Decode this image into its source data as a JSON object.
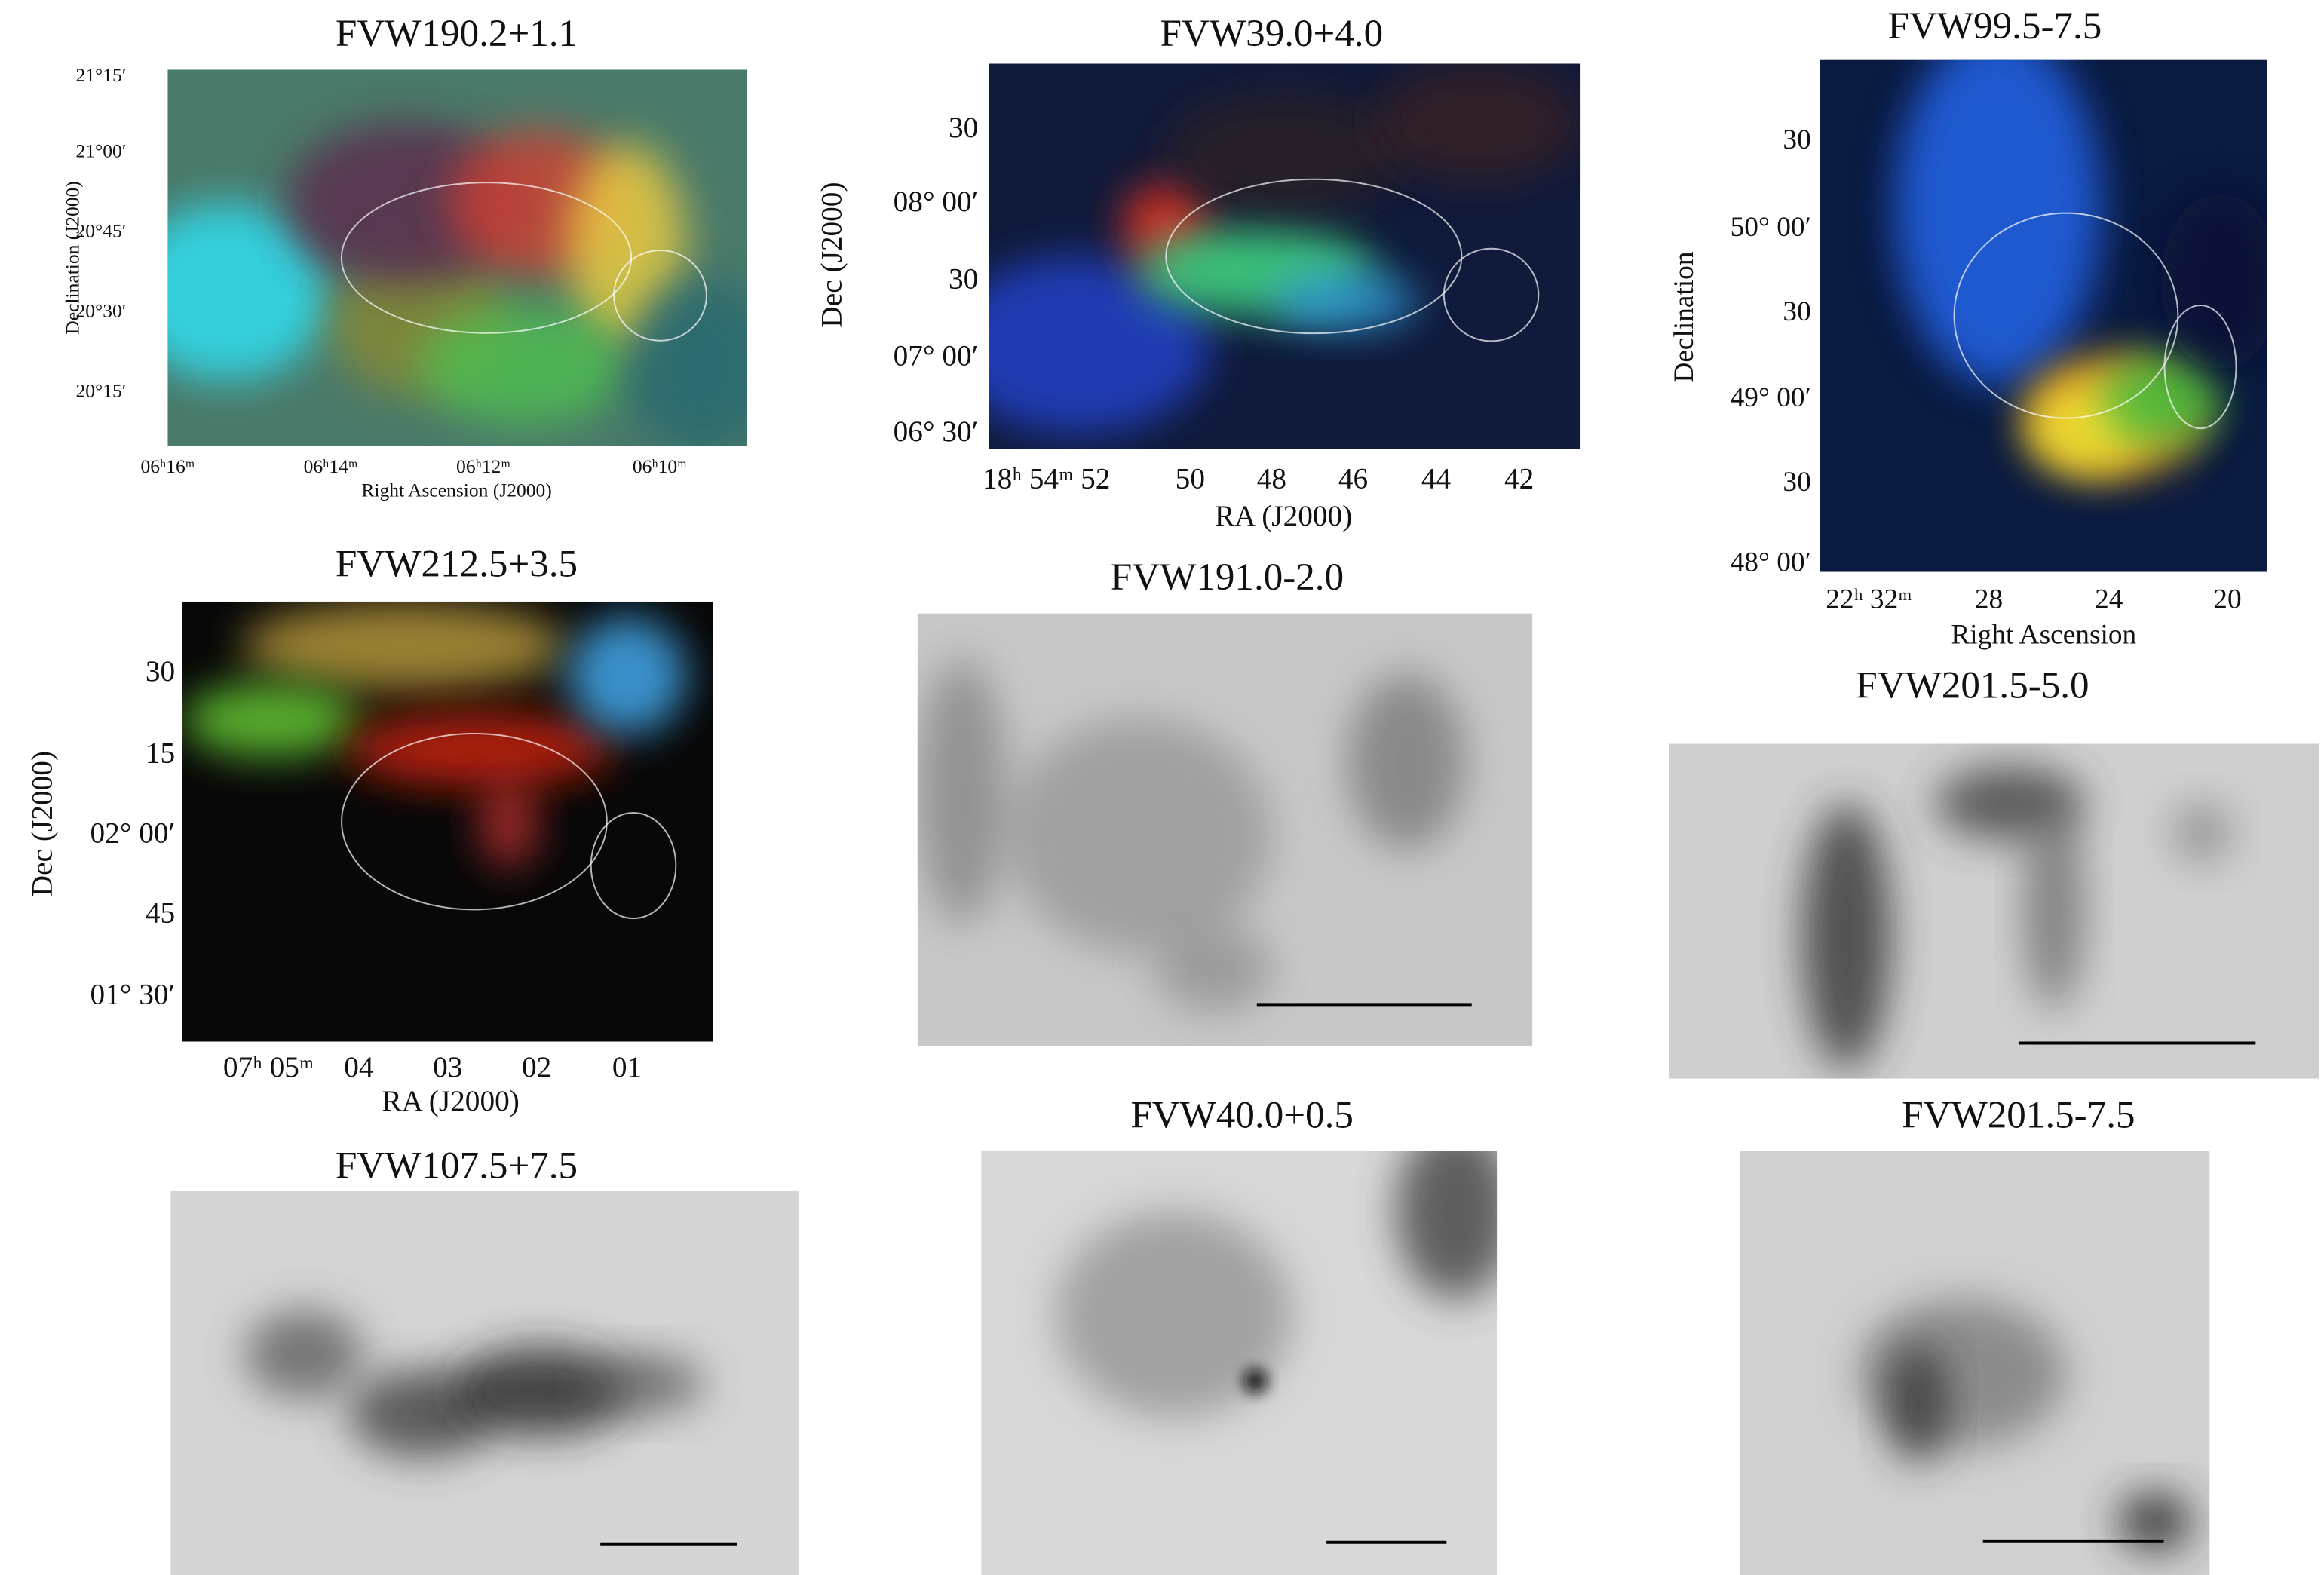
{
  "panels": [
    {
      "title": "FVW190.2+1.1",
      "x_label": "Right Ascension (J2000)",
      "y_label": "Declination (J2000)",
      "x_ticks": [
        "06ʰ16ᵐ",
        "06ʰ14ᵐ",
        "06ʰ12ᵐ",
        "06ʰ10ᵐ"
      ],
      "y_ticks": [
        "21°15′",
        "21°00′",
        "20°45′",
        "20°30′",
        "20°15′"
      ]
    },
    {
      "title": "FVW39.0+4.0",
      "x_label": "RA (J2000)",
      "y_label": "Dec (J2000)",
      "x_ticks": [
        "18ʰ 54ᵐ 52",
        "50",
        "48",
        "46",
        "44",
        "42"
      ],
      "y_ticks": [
        "30",
        "08° 00′",
        "30",
        "07° 00′",
        "06° 30′"
      ]
    },
    {
      "title": "FVW99.5-7.5",
      "x_label": "Right Ascension",
      "y_label": "Declination",
      "x_ticks": [
        "22ʰ 32ᵐ",
        "28",
        "24",
        "20"
      ],
      "y_ticks": [
        "30",
        "50° 00′",
        "30",
        "49° 00′",
        "30",
        "48° 00′"
      ]
    },
    {
      "title": "FVW212.5+3.5",
      "x_label": "RA (J2000)",
      "y_label": "Dec (J2000)",
      "x_ticks": [
        "07ʰ 05ᵐ",
        "04",
        "03",
        "02",
        "01"
      ],
      "y_ticks": [
        "30",
        "15",
        "02° 00′",
        "45",
        "01° 30′"
      ]
    },
    {
      "title": "FVW191.0-2.0"
    },
    {
      "title": "FVW201.5-5.0"
    },
    {
      "title": "FVW107.5+7.5"
    },
    {
      "title": "FVW40.0+0.5"
    },
    {
      "title": "FVW201.5-7.5"
    }
  ]
}
